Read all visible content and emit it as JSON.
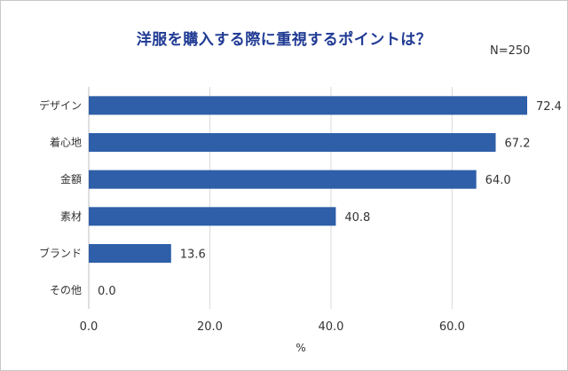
{
  "chart_data": {
    "type": "bar",
    "orientation": "horizontal",
    "title": "洋服を購入する際に重視するポイントは？",
    "annotation": "N=250",
    "categories": [
      "デザイン",
      "着心地",
      "金額",
      "素材",
      "ブランド",
      "その他"
    ],
    "values": [
      72.4,
      67.2,
      64.0,
      40.8,
      13.6,
      0.0
    ],
    "value_labels": [
      "72.4",
      "67.2",
      "64.0",
      "40.8",
      "13.6",
      "0.0"
    ],
    "xlabel": "%",
    "ylabel": "",
    "xlim": [
      0,
      72.4
    ],
    "xticks": [
      0,
      20,
      40,
      60
    ],
    "xtick_labels": [
      "0.0",
      "20.0",
      "40.0",
      "60.0"
    ],
    "grid": true,
    "legend": "none",
    "bar_color": "#2e5fa8",
    "grid_color": "#d9d9d9"
  }
}
